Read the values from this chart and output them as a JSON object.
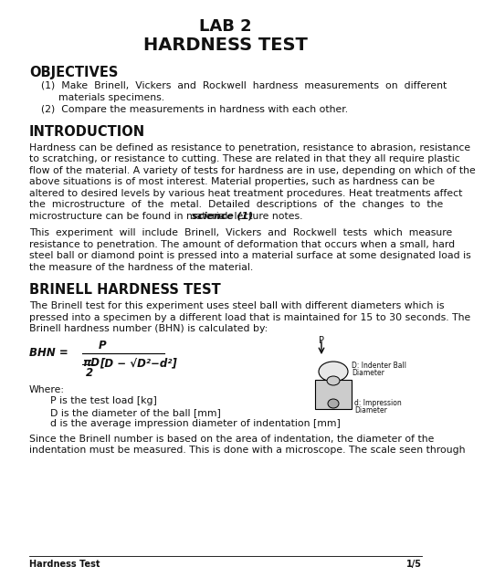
{
  "title1": "LAB 2",
  "title2": "HARDNESS TEST",
  "section1": "OBJECTIVES",
  "section2": "INTRODUCTION",
  "section3": "BRINELL HARDNESS TEST",
  "footer_left": "Hardness Test",
  "footer_right": "1/5",
  "bg_color": "#ffffff",
  "text_color": "#111111",
  "body_lines_intro1": [
    "Hardness can be defined as resistance to penetration, resistance to abrasion, resistance",
    "to scratching, or resistance to cutting. These are related in that they all require plastic",
    "flow of the material. A variety of tests for hardness are in use, depending on which of the",
    "above situations is of most interest. Material properties, such as hardness can be",
    "altered to desired levels by various heat treatment procedures. Heat treatments affect",
    "the  microstructure  of  the  metal.  Detailed  descriptions  of  the  changes  to  the"
  ],
  "intro1_last": "microstructure can be found in material ",
  "intro1_bold": "science (1)",
  "intro1_end": " lecture notes.",
  "body_lines_intro2": [
    "This  experiment  will  include  Brinell,  Vickers  and  Rockwell  tests  which  measure",
    "resistance to penetration. The amount of deformation that occurs when a small, hard",
    "steel ball or diamond point is pressed into a material surface at some designated load is",
    "the measure of the hardness of the material."
  ],
  "body_lines_brinell1": [
    "The Brinell test for this experiment uses steel ball with different diameters which is",
    "pressed into a specimen by a different load that is maintained for 15 to 30 seconds. The",
    "Brinell hardness number (BHN) is calculated by:"
  ],
  "where_lines": [
    "P is the test load [kg]",
    "D is the diameter of the ball [mm]",
    "d is the average impression diameter of indentation [mm]"
  ],
  "body_lines_brinell2": [
    "Since the Brinell number is based on the area of indentation, the diameter of the",
    "indentation must be measured. This is done with a microscope. The scale seen through"
  ],
  "obj1a": "(1)  Make  Brinell,  Vickers  and  Rockwell  hardness  measurements  on  different",
  "obj1b": "materials specimens.",
  "obj2": "(2)  Compare the measurements in hardness with each other."
}
